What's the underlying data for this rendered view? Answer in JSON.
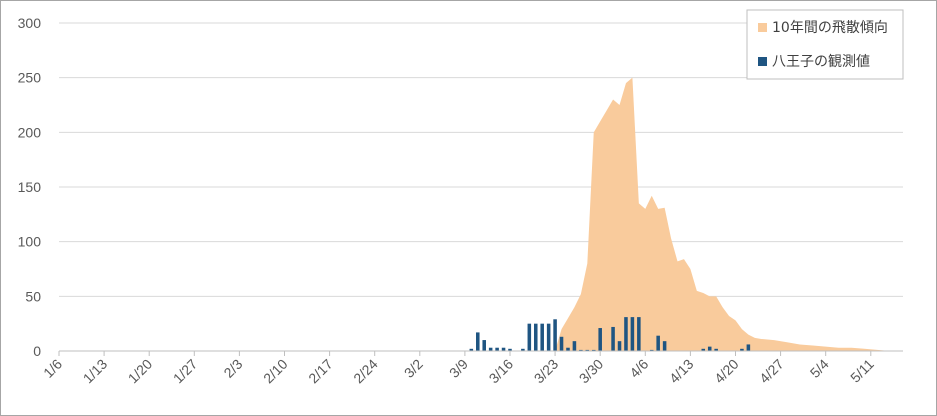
{
  "chart_data": {
    "type": "bar",
    "title": "",
    "xlabel": "",
    "ylabel": "",
    "ylim": [
      0,
      300
    ],
    "y_ticks": [
      0,
      50,
      100,
      150,
      200,
      250,
      300
    ],
    "x_date_range": [
      "1/6",
      "5/16"
    ],
    "x_ticks": [
      "1/6",
      "1/13",
      "1/20",
      "1/27",
      "2/3",
      "2/10",
      "2/17",
      "2/24",
      "3/2",
      "3/9",
      "3/16",
      "3/23",
      "3/30",
      "4/6",
      "4/13",
      "4/20",
      "4/27",
      "5/4",
      "5/11"
    ],
    "grid": true,
    "legend_position": "top-right",
    "series": [
      {
        "name": "10年間の飛散傾向",
        "type": "area",
        "color": "#f9cb9c",
        "points": [
          [
            "3/23",
            0
          ],
          [
            "3/24",
            20
          ],
          [
            "3/25",
            30
          ],
          [
            "3/26",
            40
          ],
          [
            "3/27",
            52
          ],
          [
            "3/28",
            80
          ],
          [
            "3/29",
            200
          ],
          [
            "3/30",
            210
          ],
          [
            "3/31",
            220
          ],
          [
            "4/1",
            230
          ],
          [
            "4/2",
            225
          ],
          [
            "4/3",
            245
          ],
          [
            "4/4",
            250
          ],
          [
            "4/5",
            135
          ],
          [
            "4/6",
            130
          ],
          [
            "4/7",
            142
          ],
          [
            "4/8",
            130
          ],
          [
            "4/9",
            131
          ],
          [
            "4/10",
            103
          ],
          [
            "4/11",
            82
          ],
          [
            "4/12",
            84
          ],
          [
            "4/13",
            75
          ],
          [
            "4/14",
            55
          ],
          [
            "4/15",
            53
          ],
          [
            "4/16",
            50
          ],
          [
            "4/17",
            50
          ],
          [
            "4/18",
            40
          ],
          [
            "4/19",
            32
          ],
          [
            "4/20",
            28
          ],
          [
            "4/21",
            20
          ],
          [
            "4/22",
            15
          ],
          [
            "4/23",
            12
          ],
          [
            "4/24",
            11
          ],
          [
            "4/26",
            10
          ],
          [
            "4/28",
            8
          ],
          [
            "4/30",
            6
          ],
          [
            "5/2",
            5
          ],
          [
            "5/4",
            4
          ],
          [
            "5/6",
            3
          ],
          [
            "5/8",
            3
          ],
          [
            "5/10",
            2
          ],
          [
            "5/12",
            1
          ],
          [
            "5/14",
            0
          ]
        ]
      },
      {
        "name": "八王子の観測値",
        "type": "bar",
        "color": "#1f5582",
        "points": [
          [
            "3/10",
            2
          ],
          [
            "3/11",
            17
          ],
          [
            "3/12",
            10
          ],
          [
            "3/13",
            3
          ],
          [
            "3/14",
            3
          ],
          [
            "3/15",
            3
          ],
          [
            "3/16",
            2
          ],
          [
            "3/18",
            2
          ],
          [
            "3/19",
            25
          ],
          [
            "3/20",
            25
          ],
          [
            "3/21",
            25
          ],
          [
            "3/22",
            25
          ],
          [
            "3/23",
            29
          ],
          [
            "3/24",
            13
          ],
          [
            "3/25",
            3
          ],
          [
            "3/26",
            9
          ],
          [
            "3/27",
            1
          ],
          [
            "3/28",
            1
          ],
          [
            "3/29",
            1
          ],
          [
            "3/30",
            21
          ],
          [
            "4/1",
            22
          ],
          [
            "4/2",
            9
          ],
          [
            "4/3",
            31
          ],
          [
            "4/4",
            31
          ],
          [
            "4/5",
            31
          ],
          [
            "4/7",
            1
          ],
          [
            "4/8",
            14
          ],
          [
            "4/9",
            9
          ],
          [
            "4/15",
            2
          ],
          [
            "4/16",
            4
          ],
          [
            "4/17",
            2
          ],
          [
            "4/21",
            2
          ],
          [
            "4/22",
            6
          ]
        ]
      }
    ]
  }
}
